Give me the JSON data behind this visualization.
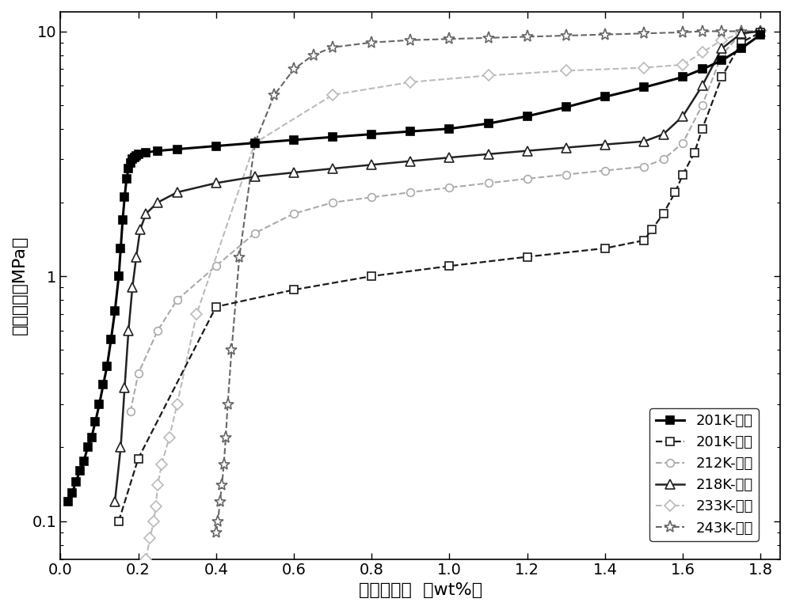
{
  "xlabel": "质量储氢量  （wt%）",
  "ylabel": "氢气压强（MPa）",
  "xlim": [
    0.0,
    1.85
  ],
  "ylim": [
    0.07,
    12.0
  ],
  "xticks": [
    0.0,
    0.2,
    0.4,
    0.6,
    0.8,
    1.0,
    1.2,
    1.4,
    1.6,
    1.8
  ],
  "series_201K_abs": {
    "label": "201K-吸氢",
    "color": "#000000",
    "linewidth": 2.2,
    "marker": "s",
    "markersize": 7,
    "linestyle": "-",
    "markerfacecolor": "black",
    "x": [
      0.02,
      0.03,
      0.04,
      0.05,
      0.06,
      0.07,
      0.08,
      0.09,
      0.1,
      0.11,
      0.12,
      0.13,
      0.14,
      0.15,
      0.155,
      0.16,
      0.165,
      0.17,
      0.175,
      0.18,
      0.185,
      0.19,
      0.195,
      0.2,
      0.22,
      0.25,
      0.3,
      0.4,
      0.5,
      0.6,
      0.7,
      0.8,
      0.9,
      1.0,
      1.1,
      1.2,
      1.3,
      1.4,
      1.5,
      1.6,
      1.65,
      1.7,
      1.75,
      1.8
    ],
    "y": [
      0.12,
      0.13,
      0.145,
      0.16,
      0.175,
      0.2,
      0.22,
      0.255,
      0.3,
      0.36,
      0.43,
      0.55,
      0.72,
      1.0,
      1.3,
      1.7,
      2.1,
      2.5,
      2.75,
      2.9,
      3.0,
      3.05,
      3.1,
      3.15,
      3.2,
      3.25,
      3.3,
      3.4,
      3.5,
      3.6,
      3.7,
      3.8,
      3.9,
      4.0,
      4.2,
      4.5,
      4.9,
      5.4,
      5.9,
      6.5,
      7.0,
      7.6,
      8.5,
      9.7
    ]
  },
  "series_201K_des": {
    "label": "201K-放氢",
    "color": "#1a1a1a",
    "linewidth": 1.6,
    "marker": "s",
    "markersize": 7,
    "linestyle": "--",
    "markerfacecolor": "white",
    "x": [
      0.15,
      0.2,
      0.4,
      0.6,
      0.8,
      1.0,
      1.2,
      1.4,
      1.5,
      1.52,
      1.55,
      1.58,
      1.6,
      1.63,
      1.65,
      1.7,
      1.75,
      1.8
    ],
    "y": [
      0.1,
      0.18,
      0.75,
      0.88,
      1.0,
      1.1,
      1.2,
      1.3,
      1.4,
      1.55,
      1.8,
      2.2,
      2.6,
      3.2,
      4.0,
      6.5,
      9.0,
      9.9
    ]
  },
  "series_212K_des": {
    "label": "212K-放氢",
    "color": "#aaaaaa",
    "linewidth": 1.5,
    "marker": "o",
    "markersize": 7,
    "linestyle": "--",
    "markerfacecolor": "white",
    "x": [
      0.18,
      0.2,
      0.25,
      0.3,
      0.4,
      0.5,
      0.6,
      0.7,
      0.8,
      0.9,
      1.0,
      1.1,
      1.2,
      1.3,
      1.4,
      1.5,
      1.55,
      1.6,
      1.65,
      1.7,
      1.75
    ],
    "y": [
      0.28,
      0.4,
      0.6,
      0.8,
      1.1,
      1.5,
      1.8,
      2.0,
      2.1,
      2.2,
      2.3,
      2.4,
      2.5,
      2.6,
      2.7,
      2.8,
      3.0,
      3.5,
      5.0,
      8.0,
      9.8
    ]
  },
  "series_218K_des": {
    "label": "218K-放氢",
    "color": "#222222",
    "linewidth": 1.8,
    "marker": "^",
    "markersize": 8,
    "linestyle": "-",
    "markerfacecolor": "white",
    "x": [
      0.14,
      0.155,
      0.165,
      0.175,
      0.185,
      0.195,
      0.205,
      0.22,
      0.25,
      0.3,
      0.4,
      0.5,
      0.6,
      0.7,
      0.8,
      0.9,
      1.0,
      1.1,
      1.2,
      1.3,
      1.4,
      1.5,
      1.55,
      1.6,
      1.65,
      1.7,
      1.75,
      1.8
    ],
    "y": [
      0.12,
      0.2,
      0.35,
      0.6,
      0.9,
      1.2,
      1.55,
      1.8,
      2.0,
      2.2,
      2.4,
      2.55,
      2.65,
      2.75,
      2.85,
      2.95,
      3.05,
      3.15,
      3.25,
      3.35,
      3.45,
      3.55,
      3.8,
      4.5,
      6.0,
      8.5,
      9.8,
      10.0
    ]
  },
  "series_233K_des": {
    "label": "233K-放氢",
    "color": "#bbbbbb",
    "linewidth": 1.5,
    "marker": "D",
    "markersize": 7,
    "linestyle": "--",
    "markerfacecolor": "white",
    "x": [
      0.22,
      0.23,
      0.24,
      0.245,
      0.25,
      0.26,
      0.28,
      0.3,
      0.35,
      0.5,
      0.7,
      0.9,
      1.1,
      1.3,
      1.5,
      1.6,
      1.65,
      1.7,
      1.75,
      1.8
    ],
    "y": [
      0.07,
      0.085,
      0.1,
      0.115,
      0.14,
      0.17,
      0.22,
      0.3,
      0.7,
      3.5,
      5.5,
      6.2,
      6.6,
      6.9,
      7.1,
      7.3,
      8.2,
      9.2,
      9.8,
      10.0
    ]
  },
  "series_243K_des": {
    "label": "243K-放氢",
    "color": "#666666",
    "linewidth": 1.5,
    "marker": "*",
    "markersize": 11,
    "linestyle": "--",
    "markerfacecolor": "white",
    "x": [
      0.4,
      0.405,
      0.41,
      0.415,
      0.42,
      0.425,
      0.43,
      0.44,
      0.46,
      0.5,
      0.55,
      0.6,
      0.65,
      0.7,
      0.8,
      0.9,
      1.0,
      1.1,
      1.2,
      1.3,
      1.4,
      1.5,
      1.6,
      1.65,
      1.7,
      1.75,
      1.8
    ],
    "y": [
      0.09,
      0.1,
      0.12,
      0.14,
      0.17,
      0.22,
      0.3,
      0.5,
      1.2,
      3.5,
      5.5,
      7.0,
      8.0,
      8.6,
      9.0,
      9.2,
      9.3,
      9.4,
      9.5,
      9.6,
      9.7,
      9.8,
      9.9,
      10.0,
      10.0,
      10.0,
      10.0
    ]
  },
  "fontsize_label": 16,
  "fontsize_tick": 14,
  "fontsize_legend": 13
}
